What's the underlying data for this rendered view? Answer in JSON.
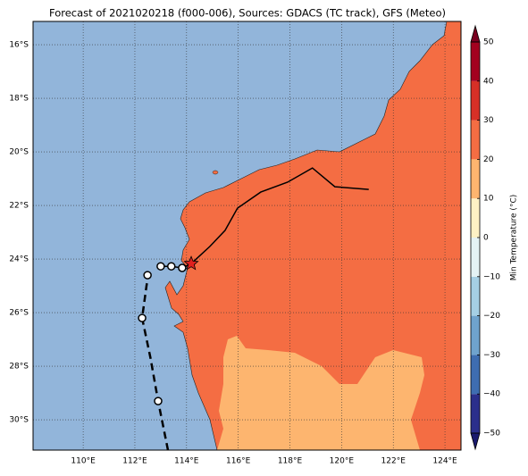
{
  "title": "Forecast of 2021020218 (f000-006), Sources: GDACS (TC track), GFS (Meteo)",
  "map": {
    "xlim": [
      108.06,
      124.62
    ],
    "ylim": [
      -31.13,
      -15.13
    ],
    "xticks": [
      {
        "value": 110,
        "label": "110°E"
      },
      {
        "value": 112,
        "label": "112°E"
      },
      {
        "value": 114,
        "label": "114°E"
      },
      {
        "value": 116,
        "label": "116°E"
      },
      {
        "value": 118,
        "label": "118°E"
      },
      {
        "value": 120,
        "label": "120°E"
      },
      {
        "value": 122,
        "label": "122°E"
      },
      {
        "value": 124,
        "label": "124°E"
      }
    ],
    "yticks": [
      {
        "value": -16,
        "label": "16°S"
      },
      {
        "value": -18,
        "label": "18°S"
      },
      {
        "value": -20,
        "label": "20°S"
      },
      {
        "value": -22,
        "label": "22°S"
      },
      {
        "value": -24,
        "label": "24°S"
      },
      {
        "value": -26,
        "label": "26°S"
      },
      {
        "value": -28,
        "label": "28°S"
      },
      {
        "value": -30,
        "label": "30°S"
      }
    ],
    "grid": true,
    "tracks": [
      {
        "style": "dashed",
        "lon": [
          113.28,
          112.9,
          112.6,
          112.28,
          112.45,
          112.55
        ],
        "lat": [
          -31.13,
          -29.3,
          -27.67,
          -26.2,
          -25.0,
          -24.4
        ]
      },
      {
        "style": "solid",
        "lon": [
          113.0,
          113.41,
          113.83,
          114.18,
          114.9,
          115.49,
          115.97,
          116.87,
          117.91,
          118.87,
          119.74,
          121.05
        ],
        "lat": [
          -24.27,
          -24.27,
          -24.33,
          -24.17,
          -23.53,
          -22.93,
          -22.1,
          -21.5,
          -21.13,
          -20.6,
          -21.3,
          -21.4
        ]
      }
    ],
    "markers": {
      "lon": [
        112.49,
        113.0,
        113.41,
        113.83,
        112.28,
        112.9
      ],
      "lat": [
        -24.6,
        -24.27,
        -24.27,
        -24.33,
        -26.2,
        -29.3
      ]
    },
    "star": {
      "lon": 114.18,
      "lat": -24.17
    }
  },
  "colorbar": {
    "title": "Min Temperature (°C)",
    "levels": [
      -50,
      -40,
      -30,
      -20,
      -10,
      0,
      10,
      20,
      30,
      40,
      50
    ],
    "colors": [
      "#2b2f8c",
      "#3e6db1",
      "#6fa3cd",
      "#a5cfe4",
      "#e4f2f4",
      "#fdf1c4",
      "#fdb56f",
      "#f46d43",
      "#d73027",
      "#a3011f"
    ],
    "ticks": [
      {
        "value": -50,
        "label": "−50"
      },
      {
        "value": -40,
        "label": "−40"
      },
      {
        "value": -30,
        "label": "−30"
      },
      {
        "value": -20,
        "label": "−20"
      },
      {
        "value": -10,
        "label": "−10"
      },
      0,
      10,
      20,
      30,
      40,
      50
    ]
  }
}
